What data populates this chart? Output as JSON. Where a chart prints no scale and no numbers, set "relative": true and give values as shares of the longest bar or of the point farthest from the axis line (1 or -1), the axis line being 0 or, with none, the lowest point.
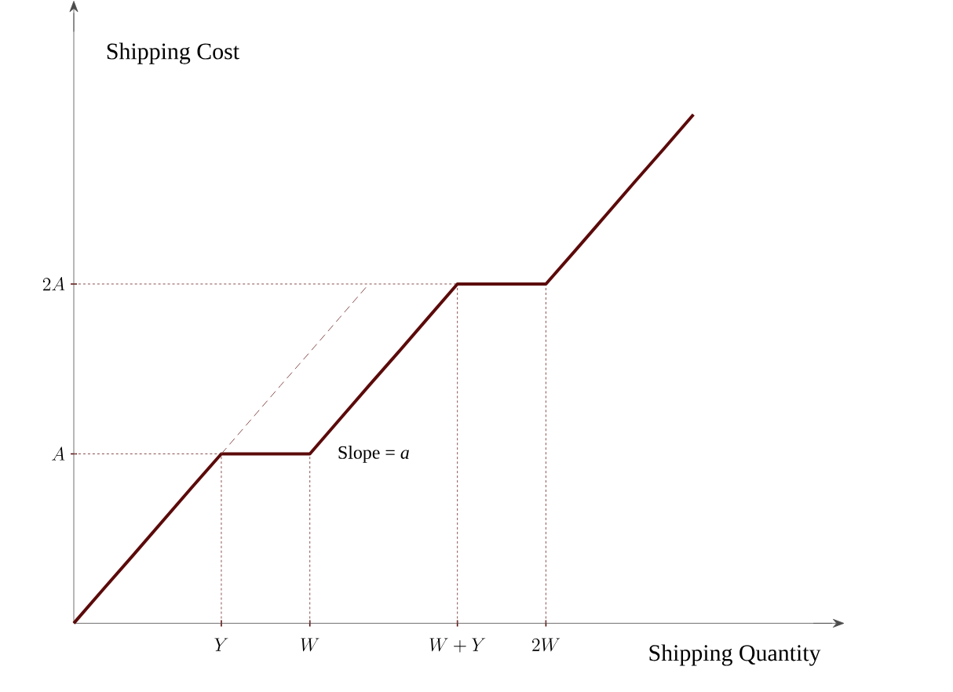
{
  "chart_data": {
    "type": "line",
    "relative": true,
    "xlabel": "Shipping Quantity",
    "ylabel": "Shipping Cost",
    "categories": [
      null,
      null,
      null,
      null,
      null,
      "Y",
      null,
      null,
      "W",
      null,
      null,
      null,
      null,
      "W + Y",
      null,
      null,
      "2W",
      null,
      null,
      null,
      null,
      null,
      null,
      null,
      null,
      null
    ],
    "series": [
      {
        "color": "#5c0a0a",
        "line_style": "solid",
        "values": [
          0,
          0.067,
          0.133,
          0.2,
          0.267,
          0.333,
          0.333,
          0.333,
          0.333,
          0.4,
          0.467,
          0.533,
          0.6,
          0.667,
          0.667,
          0.667,
          0.667,
          0.733,
          0.8,
          0.867,
          0.933,
          1,
          null,
          null,
          null,
          null
        ]
      },
      {
        "color": "#8a5050",
        "line_style": "dashed",
        "values": [
          null,
          null,
          null,
          null,
          null,
          0.333,
          0.4,
          0.467,
          0.533,
          0.6,
          0.667,
          null,
          null,
          null,
          null,
          null,
          null,
          null,
          null,
          null,
          null,
          null,
          null,
          null,
          null,
          null
        ]
      }
    ],
    "ref_lines": [
      {
        "axis": "y",
        "value": 0.333,
        "label": "A",
        "color": "#8a5050",
        "line_style": "dotted"
      },
      {
        "axis": "y",
        "value": 0.667,
        "label": "2A",
        "color": "#8a5050",
        "line_style": "dotted"
      },
      {
        "axis": "x",
        "value": "Y",
        "color": "#8a5050",
        "line_style": "dotted"
      },
      {
        "axis": "x",
        "value": "W",
        "color": "#8a5050",
        "line_style": "dotted"
      },
      {
        "axis": "x",
        "value": "W + Y",
        "color": "#8a5050",
        "line_style": "dotted"
      },
      {
        "axis": "x",
        "value": "2W",
        "color": "#8a5050",
        "line_style": "dotted"
      }
    ],
    "annotations": [
      "Slope = *a*"
    ]
  }
}
